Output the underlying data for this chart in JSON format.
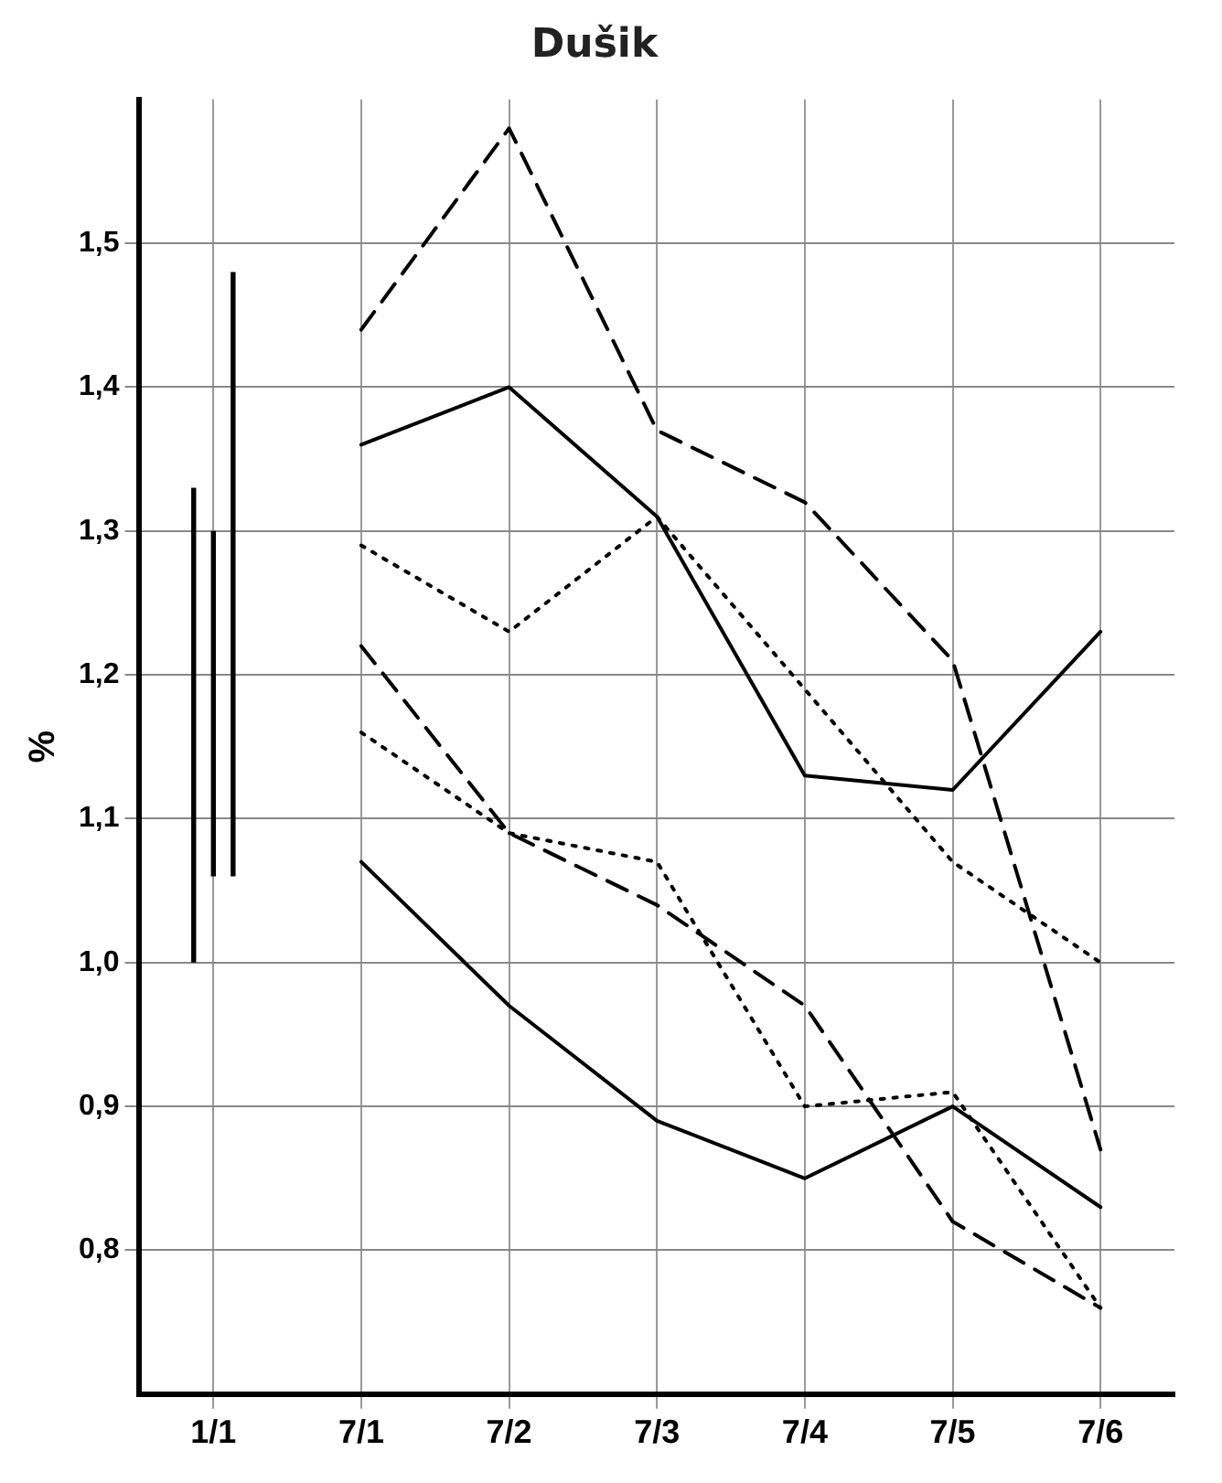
{
  "chart_data": {
    "type": "line",
    "title": "Dušik",
    "ylabel": "%",
    "categories": [
      "1/1",
      "7/1",
      "7/2",
      "7/3",
      "7/4",
      "7/5",
      "7/6"
    ],
    "series": [
      {
        "color": "#000000",
        "line_style": "dashed",
        "values": [
          null,
          1.44,
          1.58,
          1.37,
          1.32,
          1.21,
          0.87
        ]
      },
      {
        "color": "#000000",
        "line_style": "solid",
        "values": [
          null,
          1.36,
          1.4,
          1.31,
          1.13,
          1.12,
          1.23
        ]
      },
      {
        "color": "#000000",
        "line_style": "dotted",
        "values": [
          null,
          1.29,
          1.23,
          1.31,
          1.19,
          1.07,
          1.0
        ]
      },
      {
        "color": "#000000",
        "line_style": "dashed",
        "values": [
          null,
          1.22,
          1.09,
          1.04,
          0.97,
          0.82,
          0.76
        ]
      },
      {
        "color": "#000000",
        "line_style": "dotted",
        "values": [
          null,
          1.16,
          1.09,
          1.07,
          0.9,
          0.91,
          0.76
        ]
      },
      {
        "color": "#000000",
        "line_style": "solid",
        "values": [
          null,
          1.07,
          0.97,
          0.89,
          0.85,
          0.9,
          0.83
        ]
      },
      {
        "type": "bar",
        "color": "#000000",
        "base": [
          1.0,
          null,
          null,
          null,
          null,
          null,
          null
        ],
        "values": [
          0.33,
          null,
          null,
          null,
          null,
          null,
          null
        ]
      },
      {
        "type": "bar",
        "color": "#000000",
        "base": [
          1.06,
          null,
          null,
          null,
          null,
          null,
          null
        ],
        "values": [
          0.24,
          null,
          null,
          null,
          null,
          null,
          null
        ]
      },
      {
        "type": "bar",
        "color": "#000000",
        "base": [
          1.06,
          null,
          null,
          null,
          null,
          null,
          null
        ],
        "values": [
          0.42,
          null,
          null,
          null,
          null,
          null,
          null
        ]
      }
    ],
    "ylim": [
      0.7,
      1.6
    ],
    "yticks": [
      {
        "value": 0.8,
        "label": "0,8"
      },
      {
        "value": 0.9,
        "label": "0,9"
      },
      {
        "value": 1.0,
        "label": "1,0"
      },
      {
        "value": 1.1,
        "label": "1,1"
      },
      {
        "value": 1.2,
        "label": "1,2"
      },
      {
        "value": 1.3,
        "label": "1,3"
      },
      {
        "value": 1.4,
        "label": "1,4"
      },
      {
        "value": 1.5,
        "label": "1,5"
      }
    ],
    "grid": true,
    "legend": false,
    "marker": "none"
  }
}
